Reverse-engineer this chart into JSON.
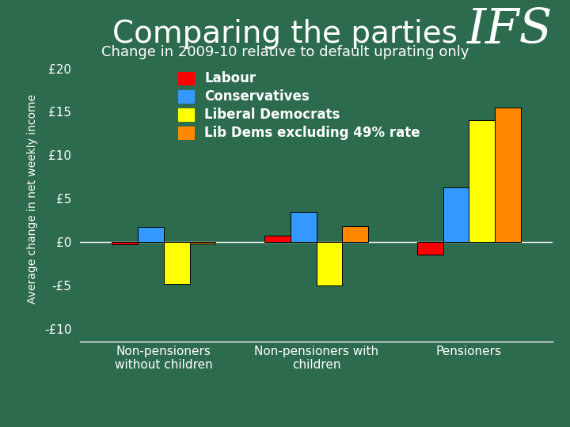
{
  "title": "Comparing the parties",
  "subtitle": "Change in 2009-10 relative to default uprating only",
  "ylabel": "Average change in net weekly income",
  "background_color": "#2d6b4f",
  "categories": [
    "Non-pensioners\nwithout children",
    "Non-pensioners with\nchildren",
    "Pensioners"
  ],
  "series": {
    "Labour": [
      -0.3,
      0.7,
      -1.5
    ],
    "Conservatives": [
      1.7,
      3.5,
      6.3
    ],
    "Liberal Democrats": [
      -4.8,
      -5.0,
      14.0
    ],
    "Lib Dems excluding 49% rate": [
      -0.2,
      1.8,
      15.5
    ]
  },
  "colors": {
    "Labour": "#ff0000",
    "Conservatives": "#3399ff",
    "Liberal Democrats": "#ffff00",
    "Lib Dems excluding 49% rate": "#ff8800"
  },
  "yticks": [
    -10,
    -5,
    0,
    5,
    10,
    15,
    20
  ],
  "ytick_labels": [
    "-£10",
    "-£5",
    "£0",
    "£5",
    "£10",
    "£15",
    "£20"
  ],
  "ylim": [
    -11.5,
    21.5
  ],
  "title_fontsize": 28,
  "subtitle_fontsize": 13,
  "ylabel_fontsize": 10,
  "tick_fontsize": 11,
  "legend_fontsize": 12,
  "bar_width": 0.17,
  "bar_edge_color": "#000000",
  "ifs_fontsize": 44
}
